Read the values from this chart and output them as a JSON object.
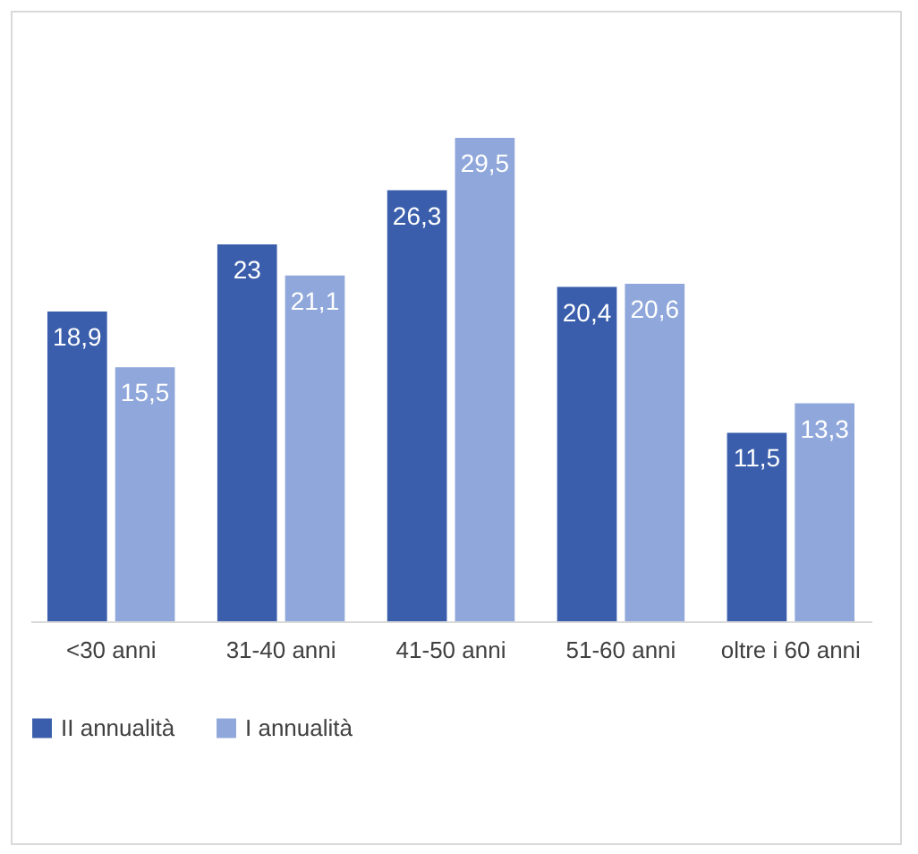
{
  "chart_data": {
    "type": "bar",
    "categories": [
      "<30 anni",
      "31-40 anni",
      "41-50 anni",
      "51-60 anni",
      "oltre i 60 anni"
    ],
    "series": [
      {
        "name": "II annualità",
        "color": "#3a5eab",
        "values": [
          18.9,
          23,
          26.3,
          20.4,
          11.5
        ],
        "value_labels": [
          "18,9",
          "23",
          "26,3",
          "20,4",
          "11,5"
        ]
      },
      {
        "name": "I annualità",
        "color": "#8fa7da",
        "values": [
          15.5,
          21.1,
          29.5,
          20.6,
          13.3
        ],
        "value_labels": [
          "15,5",
          "21,1",
          "29,5",
          "20,6",
          "13,3"
        ]
      }
    ],
    "legend": "bottom",
    "grid": false
  }
}
